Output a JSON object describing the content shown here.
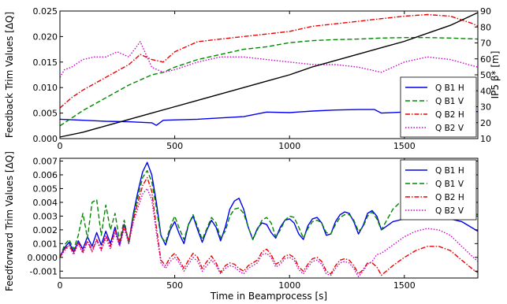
{
  "chart_data": [
    {
      "type": "line",
      "ylabel": "Feedback Trim Values [ΔQ]",
      "y2label": "IP5 β* [m]",
      "xlim": [
        0,
        1820
      ],
      "ylim": [
        0,
        0.025
      ],
      "y2lim": [
        10,
        90
      ],
      "xticks": [
        0,
        500,
        1000,
        1500
      ],
      "yticks": [
        0.0,
        0.005,
        0.01,
        0.015,
        0.02,
        0.025
      ],
      "ytick_labels": [
        "0.000",
        "0.005",
        "0.010",
        "0.015",
        "0.020",
        "0.025"
      ],
      "y2ticks": [
        10,
        20,
        30,
        40,
        50,
        60,
        70,
        80,
        90
      ],
      "legend_position": "lower-right",
      "grid": false,
      "series": [
        {
          "name": "Q B1 H",
          "color": "#0000ee",
          "style": "solid",
          "x": [
            0,
            100,
            200,
            300,
            400,
            420,
            450,
            600,
            800,
            900,
            1000,
            1100,
            1200,
            1300,
            1370,
            1400,
            1500,
            1600,
            1700,
            1820
          ],
          "y": [
            0.0038,
            0.0036,
            0.0034,
            0.0033,
            0.0031,
            0.0026,
            0.0036,
            0.0038,
            0.0043,
            0.0052,
            0.0051,
            0.0054,
            0.0056,
            0.0057,
            0.0057,
            0.005,
            0.0052,
            0.0053,
            0.0053,
            0.0053
          ]
        },
        {
          "name": "Q B1 V",
          "color": "#008800",
          "style": "dashed",
          "x": [
            0,
            50,
            100,
            200,
            300,
            400,
            450,
            500,
            600,
            700,
            800,
            900,
            1000,
            1100,
            1200,
            1300,
            1400,
            1500,
            1600,
            1700,
            1820
          ],
          "y": [
            0.0025,
            0.004,
            0.0055,
            0.008,
            0.0105,
            0.0125,
            0.013,
            0.014,
            0.0155,
            0.0165,
            0.0175,
            0.018,
            0.0188,
            0.0192,
            0.0194,
            0.0195,
            0.0197,
            0.0198,
            0.0198,
            0.0197,
            0.0195
          ]
        },
        {
          "name": "Q B2 H",
          "color": "#ee0000",
          "style": "dashdot",
          "x": [
            0,
            50,
            100,
            200,
            300,
            350,
            400,
            450,
            500,
            600,
            700,
            800,
            900,
            1000,
            1100,
            1200,
            1300,
            1400,
            1500,
            1600,
            1700,
            1800,
            1820
          ],
          "y": [
            0.006,
            0.008,
            0.0095,
            0.012,
            0.0145,
            0.0165,
            0.0155,
            0.015,
            0.017,
            0.019,
            0.0195,
            0.02,
            0.0205,
            0.021,
            0.022,
            0.0225,
            0.023,
            0.0235,
            0.024,
            0.0243,
            0.024,
            0.0225,
            0.022
          ]
        },
        {
          "name": "Q B2 V",
          "color": "#cc00cc",
          "style": "dotted",
          "x": [
            0,
            20,
            50,
            100,
            150,
            200,
            250,
            300,
            350,
            400,
            450,
            500,
            600,
            700,
            800,
            900,
            1000,
            1100,
            1200,
            1300,
            1400,
            1500,
            1600,
            1700,
            1820
          ],
          "y": [
            0.012,
            0.0135,
            0.014,
            0.0155,
            0.016,
            0.016,
            0.017,
            0.016,
            0.019,
            0.014,
            0.013,
            0.0135,
            0.015,
            0.016,
            0.016,
            0.0155,
            0.015,
            0.0145,
            0.0145,
            0.014,
            0.013,
            0.015,
            0.016,
            0.0155,
            0.014
          ]
        },
        {
          "name": "",
          "color": "#000000",
          "style": "solid",
          "axis": "right",
          "x": [
            0,
            100,
            200,
            300,
            400,
            500,
            600,
            700,
            800,
            900,
            1000,
            1100,
            1200,
            1300,
            1400,
            1500,
            1600,
            1700,
            1820
          ],
          "y": [
            11,
            14,
            18,
            22,
            26,
            30,
            34,
            38,
            42,
            46,
            50,
            55,
            59,
            63,
            67,
            71,
            76,
            81,
            89
          ]
        }
      ]
    },
    {
      "type": "line",
      "ylabel": "Feedforward Trim Values [ΔQ]",
      "xlabel": "Time in Beamprocess [s]",
      "xlim": [
        0,
        1820
      ],
      "ylim": [
        -0.0015,
        0.0072
      ],
      "xticks": [
        0,
        500,
        1000,
        1500
      ],
      "yticks": [
        -0.001,
        0.0,
        0.001,
        0.002,
        0.003,
        0.004,
        0.005,
        0.006,
        0.007
      ],
      "ytick_labels": [
        "-0.001",
        "0.0000",
        "0.001",
        "0.002",
        "0.003",
        "0.004",
        "0.005",
        "0.006",
        "0.007"
      ],
      "legend_position": "upper-right",
      "grid": false,
      "series": [
        {
          "name": "Q B1 H",
          "color": "#0000ee",
          "style": "solid",
          "x": [
            0,
            20,
            40,
            60,
            80,
            100,
            120,
            140,
            160,
            180,
            200,
            220,
            240,
            260,
            280,
            300,
            320,
            340,
            360,
            380,
            400,
            420,
            440,
            460,
            480,
            500,
            520,
            540,
            560,
            580,
            600,
            620,
            640,
            660,
            680,
            700,
            720,
            740,
            760,
            780,
            800,
            820,
            840,
            860,
            880,
            900,
            920,
            940,
            960,
            980,
            1000,
            1020,
            1040,
            1060,
            1080,
            1100,
            1120,
            1140,
            1160,
            1180,
            1200,
            1220,
            1240,
            1260,
            1280,
            1300,
            1320,
            1340,
            1360,
            1380,
            1400,
            1450,
            1500,
            1550,
            1600,
            1650,
            1700,
            1750,
            1800,
            1820
          ],
          "y": [
            0.0,
            0.0007,
            0.0011,
            0.0004,
            0.0012,
            0.0006,
            0.0015,
            0.0008,
            0.0018,
            0.0009,
            0.0019,
            0.001,
            0.0022,
            0.0009,
            0.0024,
            0.0011,
            0.0032,
            0.0048,
            0.0062,
            0.0069,
            0.006,
            0.004,
            0.0016,
            0.0009,
            0.002,
            0.0026,
            0.0017,
            0.001,
            0.0024,
            0.003,
            0.002,
            0.0011,
            0.002,
            0.0027,
            0.0022,
            0.0012,
            0.0022,
            0.0035,
            0.0041,
            0.0043,
            0.0035,
            0.0022,
            0.0013,
            0.0021,
            0.0025,
            0.0024,
            0.0018,
            0.0014,
            0.0022,
            0.0027,
            0.0028,
            0.0025,
            0.0017,
            0.0013,
            0.0023,
            0.0028,
            0.0029,
            0.0025,
            0.0016,
            0.0017,
            0.0026,
            0.0031,
            0.0033,
            0.0032,
            0.0026,
            0.0017,
            0.0023,
            0.0032,
            0.0034,
            0.003,
            0.002,
            0.0026,
            0.0028,
            0.0029,
            0.003,
            0.003,
            0.0028,
            0.0026,
            0.0021,
            0.0019
          ]
        },
        {
          "name": "Q B1 V",
          "color": "#008800",
          "style": "dashed",
          "x": [
            0,
            20,
            40,
            60,
            80,
            100,
            120,
            140,
            160,
            180,
            200,
            220,
            240,
            260,
            280,
            300,
            320,
            340,
            360,
            380,
            400,
            420,
            440,
            460,
            480,
            500,
            520,
            540,
            560,
            580,
            600,
            620,
            640,
            660,
            680,
            700,
            720,
            740,
            760,
            780,
            800,
            820,
            840,
            860,
            880,
            900,
            920,
            940,
            960,
            980,
            1000,
            1020,
            1040,
            1060,
            1080,
            1100,
            1120,
            1140,
            1160,
            1180,
            1200,
            1220,
            1240,
            1260,
            1280,
            1300,
            1320,
            1340,
            1360,
            1380,
            1400,
            1450,
            1500,
            1550,
            1600,
            1650,
            1700,
            1750,
            1800,
            1820
          ],
          "y": [
            0.0,
            0.0009,
            0.0013,
            0.0006,
            0.0016,
            0.0032,
            0.0014,
            0.004,
            0.0042,
            0.0016,
            0.0038,
            0.002,
            0.0032,
            0.0012,
            0.0027,
            0.001,
            0.003,
            0.0044,
            0.0058,
            0.0063,
            0.0055,
            0.0036,
            0.0015,
            0.0011,
            0.0022,
            0.003,
            0.0021,
            0.0013,
            0.0024,
            0.0031,
            0.0022,
            0.0013,
            0.0021,
            0.0029,
            0.0025,
            0.0014,
            0.0019,
            0.003,
            0.0035,
            0.0036,
            0.0032,
            0.0022,
            0.0013,
            0.002,
            0.0027,
            0.0029,
            0.0025,
            0.0015,
            0.002,
            0.0027,
            0.003,
            0.0029,
            0.0022,
            0.0014,
            0.0021,
            0.0026,
            0.0027,
            0.0025,
            0.0018,
            0.0017,
            0.0024,
            0.0029,
            0.0031,
            0.0031,
            0.0027,
            0.0019,
            0.0022,
            0.003,
            0.0033,
            0.0028,
            0.002,
            0.0035,
            0.0043,
            0.004,
            0.0038,
            0.0036,
            0.0034,
            0.0034,
            0.0032,
            0.0031
          ]
        },
        {
          "name": "Q B2 H",
          "color": "#ee0000",
          "style": "dashdot",
          "x": [
            0,
            20,
            40,
            60,
            80,
            100,
            120,
            140,
            160,
            180,
            200,
            220,
            240,
            260,
            280,
            300,
            320,
            340,
            360,
            380,
            400,
            420,
            440,
            460,
            480,
            500,
            520,
            540,
            560,
            580,
            600,
            620,
            640,
            660,
            680,
            700,
            720,
            740,
            760,
            780,
            800,
            820,
            840,
            860,
            880,
            900,
            920,
            940,
            960,
            980,
            1000,
            1020,
            1040,
            1060,
            1080,
            1100,
            1120,
            1140,
            1160,
            1180,
            1200,
            1220,
            1240,
            1260,
            1280,
            1300,
            1320,
            1340,
            1360,
            1380,
            1400,
            1450,
            1500,
            1550,
            1600,
            1650,
            1700,
            1750,
            1800,
            1820
          ],
          "y": [
            0.0,
            0.0006,
            0.0009,
            0.0003,
            0.0011,
            0.0004,
            0.0012,
            0.0005,
            0.0013,
            0.0006,
            0.0016,
            0.0008,
            0.002,
            0.001,
            0.0023,
            0.0012,
            0.0028,
            0.004,
            0.0052,
            0.0058,
            0.0048,
            0.0022,
            -0.0002,
            -0.0006,
            0.0,
            0.0003,
            -0.0002,
            -0.0008,
            -0.0002,
            0.0003,
            0.0,
            -0.0008,
            -0.0003,
            0.0001,
            -0.0004,
            -0.0011,
            -0.0006,
            -0.0004,
            -0.0005,
            -0.0008,
            -0.001,
            -0.0006,
            -0.0004,
            -0.0002,
            0.0004,
            0.0006,
            0.0002,
            -0.0005,
            -0.0003,
            0.0001,
            0.0002,
            0.0,
            -0.0007,
            -0.001,
            -0.0005,
            -0.0001,
            0.0,
            -0.0003,
            -0.001,
            -0.0012,
            -0.0006,
            -0.0002,
            -0.0001,
            -0.0002,
            -0.0006,
            -0.0012,
            -0.0009,
            -0.0004,
            -0.0004,
            -0.0007,
            -0.0013,
            -0.0006,
            0.0,
            0.0005,
            0.0008,
            0.0008,
            0.0005,
            -0.0002,
            -0.0009,
            -0.0011
          ]
        },
        {
          "name": "Q B2 V",
          "color": "#cc00cc",
          "style": "dotted",
          "x": [
            0,
            20,
            40,
            60,
            80,
            100,
            120,
            140,
            160,
            180,
            200,
            220,
            240,
            260,
            280,
            300,
            320,
            340,
            360,
            380,
            400,
            420,
            440,
            460,
            480,
            500,
            520,
            540,
            560,
            580,
            600,
            620,
            640,
            660,
            680,
            700,
            720,
            740,
            760,
            780,
            800,
            820,
            840,
            860,
            880,
            900,
            920,
            940,
            960,
            980,
            1000,
            1020,
            1040,
            1060,
            1080,
            1100,
            1120,
            1140,
            1160,
            1180,
            1200,
            1220,
            1240,
            1260,
            1280,
            1300,
            1320,
            1340,
            1360,
            1380,
            1400,
            1450,
            1500,
            1550,
            1600,
            1650,
            1700,
            1750,
            1800,
            1820
          ],
          "y": [
            0.0,
            0.0005,
            0.0008,
            0.0002,
            0.001,
            0.0003,
            0.0011,
            0.0004,
            0.0012,
            0.0005,
            0.0014,
            0.0006,
            0.0018,
            0.0008,
            0.0021,
            0.001,
            0.0026,
            0.0036,
            0.0046,
            0.005,
            0.0042,
            0.0018,
            -0.0004,
            -0.0008,
            -0.0003,
            0.0,
            -0.0004,
            -0.001,
            -0.0005,
            0.0,
            -0.0003,
            -0.001,
            -0.0006,
            -0.0002,
            -0.0006,
            -0.0012,
            -0.0008,
            -0.0006,
            -0.0007,
            -0.001,
            -0.0012,
            -0.0008,
            -0.0006,
            -0.0004,
            0.0002,
            0.0003,
            0.0,
            -0.0007,
            -0.0005,
            -0.0001,
            0.0,
            -0.0002,
            -0.0009,
            -0.0012,
            -0.0007,
            -0.0003,
            -0.0002,
            -0.0005,
            -0.0012,
            -0.0013,
            -0.0008,
            -0.0004,
            -0.0003,
            -0.0004,
            -0.0008,
            -0.0014,
            -0.001,
            -0.0005,
            -0.0003,
            0.0002,
            0.0003,
            0.0009,
            0.0015,
            0.0019,
            0.0021,
            0.002,
            0.0016,
            0.0008,
            0.0,
            -0.0003
          ]
        }
      ]
    }
  ]
}
